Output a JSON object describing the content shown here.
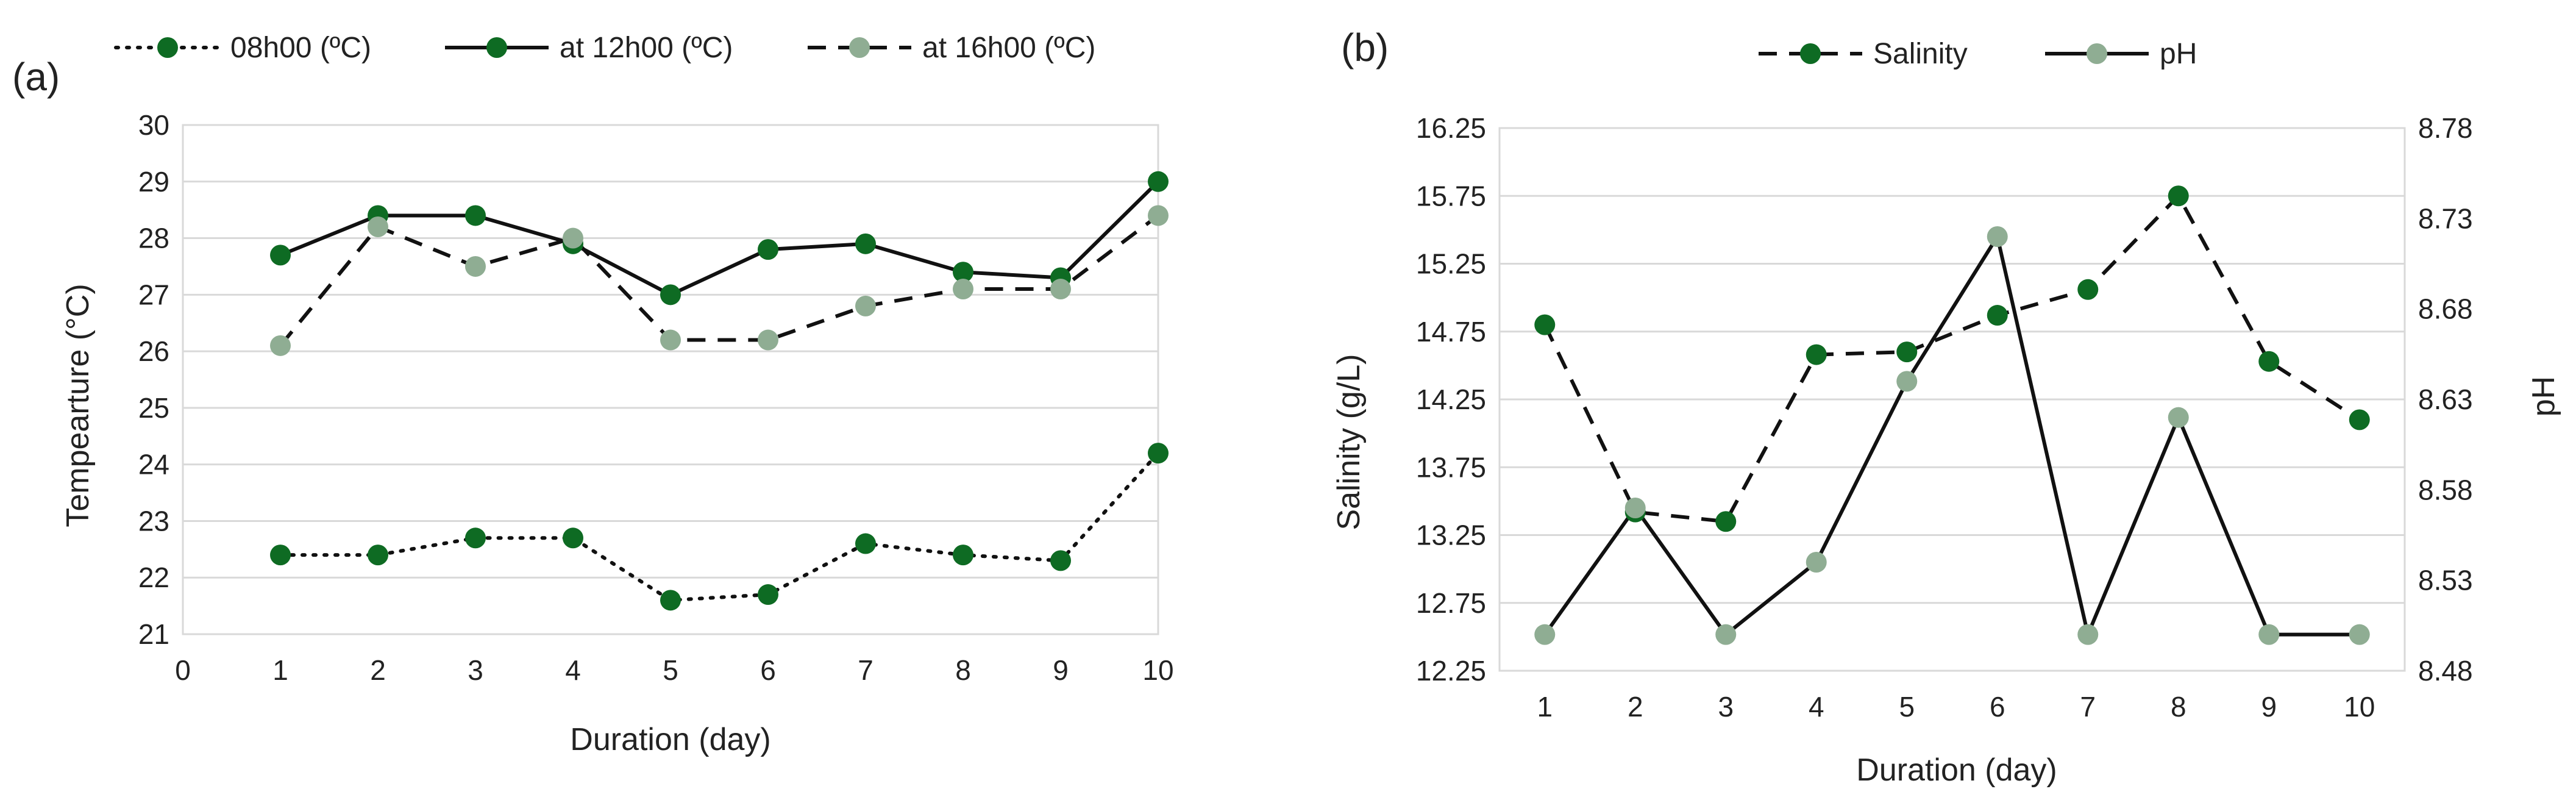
{
  "colors": {
    "dark_green": "#0e6b23",
    "light_green": "#8fad93",
    "line": "#111111",
    "grid": "#d9d9d9"
  },
  "chart_data": [
    {
      "panel_label": "(a)",
      "type": "line",
      "xlabel": "Duration (day)",
      "ylabel": "Tempearture (°C)",
      "xlim": [
        0,
        10
      ],
      "ylim": [
        21,
        30
      ],
      "x_ticks": [
        "0",
        "1",
        "2",
        "3",
        "4",
        "5",
        "6",
        "7",
        "8",
        "9",
        "10"
      ],
      "y_ticks": [
        "21",
        "22",
        "23",
        "24",
        "25",
        "26",
        "27",
        "28",
        "29",
        "30"
      ],
      "x": [
        1,
        2,
        3,
        4,
        5,
        6,
        7,
        8,
        9,
        10
      ],
      "series": [
        {
          "name": "08h00 (ºC)",
          "style": "dotted",
          "marker": "dark_green",
          "values": [
            22.4,
            22.4,
            22.7,
            22.7,
            21.6,
            21.7,
            22.6,
            22.4,
            22.3,
            24.2
          ]
        },
        {
          "name": "at 12h00 (ºC)",
          "style": "solid",
          "marker": "dark_green",
          "values": [
            27.7,
            28.4,
            28.4,
            27.9,
            27.0,
            27.8,
            27.9,
            27.4,
            27.3,
            29.0
          ]
        },
        {
          "name": "at 16h00 (ºC)",
          "style": "dashed",
          "marker": "light_green",
          "values": [
            26.1,
            28.2,
            27.5,
            28.0,
            26.2,
            26.2,
            26.8,
            27.1,
            27.1,
            28.4
          ]
        }
      ]
    },
    {
      "panel_label": "(b)",
      "type": "line",
      "xlabel": "Duration (day)",
      "ylabel": "Salinity (g/L)",
      "y2label": "pH",
      "x_ticks": [
        "1",
        "2",
        "3",
        "4",
        "5",
        "6",
        "7",
        "8",
        "9",
        "10"
      ],
      "y_ticks": [
        "12.25",
        "12.75",
        "13.25",
        "13.75",
        "14.25",
        "14.75",
        "15.25",
        "15.75",
        "16.25"
      ],
      "y2_ticks": [
        "8.48",
        "8.53",
        "8.58",
        "8.63",
        "8.68",
        "8.73",
        "8.78"
      ],
      "ylim": [
        12.25,
        16.25
      ],
      "y2lim": [
        8.48,
        8.78
      ],
      "x": [
        1,
        2,
        3,
        4,
        5,
        6,
        7,
        8,
        9,
        10
      ],
      "series": [
        {
          "name": "Salinity",
          "axis": "left",
          "style": "dashed",
          "marker": "dark_green",
          "values": [
            14.8,
            13.42,
            13.35,
            14.58,
            14.6,
            14.87,
            15.06,
            15.75,
            14.53,
            14.1
          ]
        },
        {
          "name": "pH",
          "axis": "right",
          "style": "solid",
          "marker": "light_green",
          "values": [
            8.5,
            8.57,
            8.5,
            8.54,
            8.64,
            8.72,
            8.5,
            8.62,
            8.5,
            8.5
          ]
        }
      ]
    }
  ]
}
